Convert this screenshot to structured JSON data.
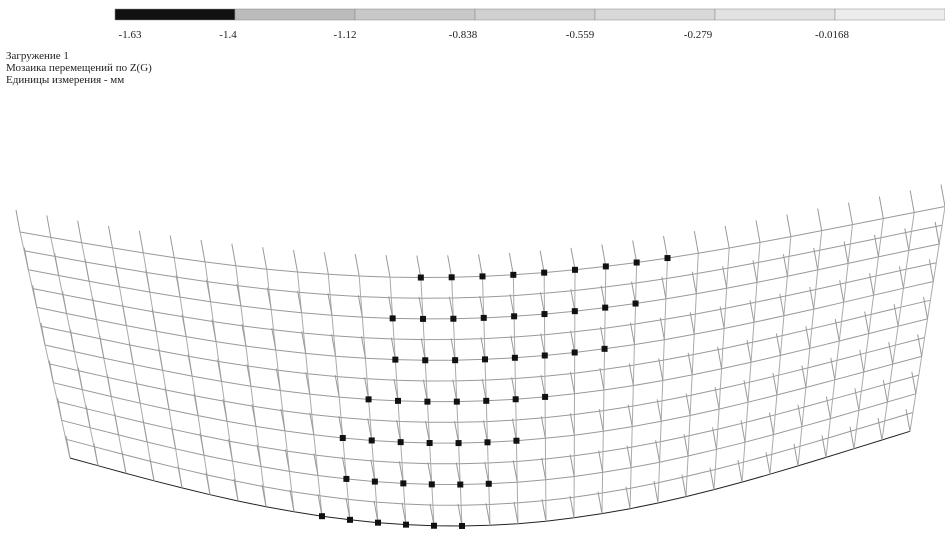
{
  "legend": {
    "ticks": [
      "-1.63",
      "-1.4",
      "-1.12",
      "-0.838",
      "-0.559",
      "-0.279",
      "-0.0168"
    ]
  },
  "info": {
    "lines": [
      "Загружение 1",
      "Мозаика перемещений по Z(G)",
      "Единицы измерения - мм"
    ]
  }
}
